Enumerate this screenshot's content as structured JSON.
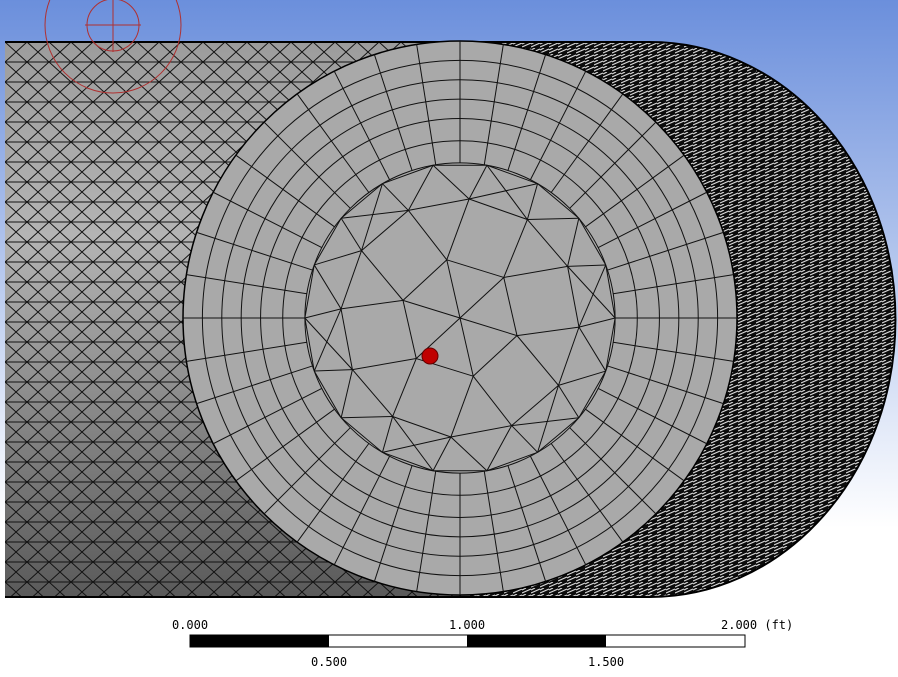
{
  "scale_bar": {
    "top_labels": [
      "0.000",
      "1.000",
      "2.000 (ft)"
    ],
    "bottom_labels": [
      "0.500",
      "1.500"
    ]
  }
}
